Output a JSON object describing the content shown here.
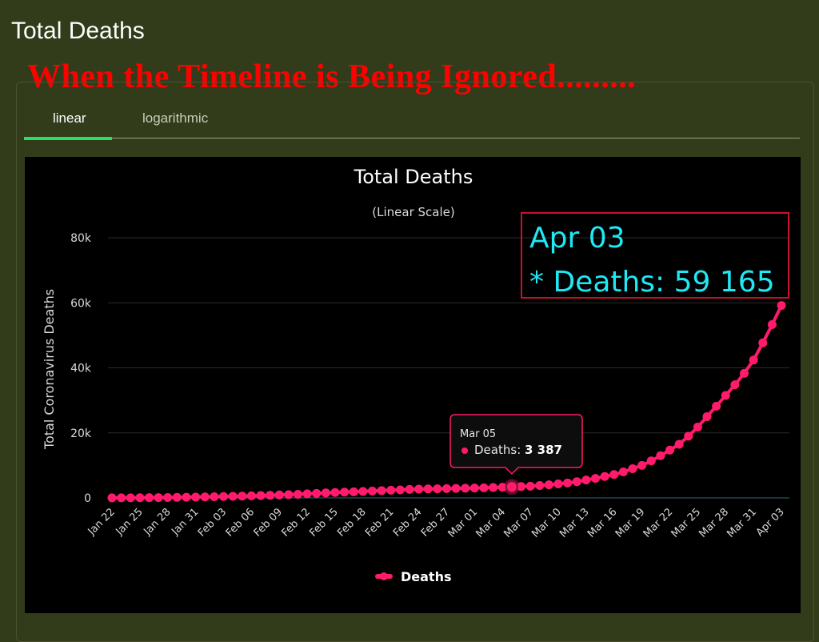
{
  "page": {
    "title": "Total Deaths",
    "banner": "When the Timeline is Being Ignored.........",
    "tabs": [
      {
        "label": "linear",
        "active": true
      },
      {
        "label": "logarithmic",
        "active": false
      }
    ]
  },
  "colors": {
    "background": "#323c1a",
    "chart_background": "#000000",
    "series": "#ff1a6c",
    "tab_active": "#27e06a",
    "callout_border": "#c9112b",
    "callout_text": "#1ee9f5",
    "banner_text": "#ff0000"
  },
  "tooltip": {
    "date": "Mar 05",
    "series": "Deaths",
    "value_text": "3 387"
  },
  "callout": {
    "line1": "Apr 03",
    "line2": "* Deaths: 59 165"
  },
  "chart_data": {
    "type": "line",
    "title": "Total Deaths",
    "subtitle": "(Linear Scale)",
    "ylabel": "Total Coronavirus Deaths",
    "xlabel": "",
    "ylim": [
      0,
      80000
    ],
    "y_ticks": [
      0,
      20000,
      40000,
      60000,
      80000
    ],
    "y_tick_labels": [
      "0",
      "20k",
      "40k",
      "60k",
      "80k"
    ],
    "x_tick_labels": [
      "Jan 22",
      "Jan 25",
      "Jan 28",
      "Jan 31",
      "Feb 03",
      "Feb 06",
      "Feb 09",
      "Feb 12",
      "Feb 15",
      "Feb 18",
      "Feb 21",
      "Feb 24",
      "Feb 27",
      "Mar 01",
      "Mar 04",
      "Mar 07",
      "Mar 10",
      "Mar 13",
      "Mar 16",
      "Mar 19",
      "Mar 22",
      "Mar 25",
      "Mar 28",
      "Mar 31",
      "Apr 03"
    ],
    "grid": true,
    "legend": "bottom-center",
    "highlight": {
      "date": "Mar 05",
      "value": 3387
    },
    "series": [
      {
        "name": "Deaths",
        "x": [
          "Jan 22",
          "Jan 23",
          "Jan 24",
          "Jan 25",
          "Jan 26",
          "Jan 27",
          "Jan 28",
          "Jan 29",
          "Jan 30",
          "Jan 31",
          "Feb 01",
          "Feb 02",
          "Feb 03",
          "Feb 04",
          "Feb 05",
          "Feb 06",
          "Feb 07",
          "Feb 08",
          "Feb 09",
          "Feb 10",
          "Feb 11",
          "Feb 12",
          "Feb 13",
          "Feb 14",
          "Feb 15",
          "Feb 16",
          "Feb 17",
          "Feb 18",
          "Feb 19",
          "Feb 20",
          "Feb 21",
          "Feb 22",
          "Feb 23",
          "Feb 24",
          "Feb 25",
          "Feb 26",
          "Feb 27",
          "Feb 28",
          "Feb 29",
          "Mar 01",
          "Mar 02",
          "Mar 03",
          "Mar 04",
          "Mar 05",
          "Mar 06",
          "Mar 07",
          "Mar 08",
          "Mar 09",
          "Mar 10",
          "Mar 11",
          "Mar 12",
          "Mar 13",
          "Mar 14",
          "Mar 15",
          "Mar 16",
          "Mar 17",
          "Mar 18",
          "Mar 19",
          "Mar 20",
          "Mar 21",
          "Mar 22",
          "Mar 23",
          "Mar 24",
          "Mar 25",
          "Mar 26",
          "Mar 27",
          "Mar 28",
          "Mar 29",
          "Mar 30",
          "Mar 31",
          "Apr 01",
          "Apr 02",
          "Apr 03"
        ],
        "values": [
          17,
          25,
          41,
          56,
          80,
          106,
          132,
          170,
          213,
          259,
          304,
          362,
          426,
          492,
          565,
          638,
          724,
          813,
          910,
          1018,
          1115,
          1261,
          1383,
          1526,
          1669,
          1775,
          1873,
          2009,
          2126,
          2247,
          2360,
          2460,
          2618,
          2699,
          2763,
          2800,
          2858,
          2923,
          2977,
          3050,
          3117,
          3202,
          3285,
          3387,
          3494,
          3599,
          3827,
          4030,
          4300,
          4600,
          5000,
          5500,
          6000,
          6600,
          7200,
          8000,
          9000,
          10000,
          11400,
          13000,
          14700,
          16500,
          19000,
          21800,
          25000,
          28200,
          31500,
          34800,
          38300,
          42400,
          47700,
          53300,
          59165
        ]
      }
    ]
  }
}
